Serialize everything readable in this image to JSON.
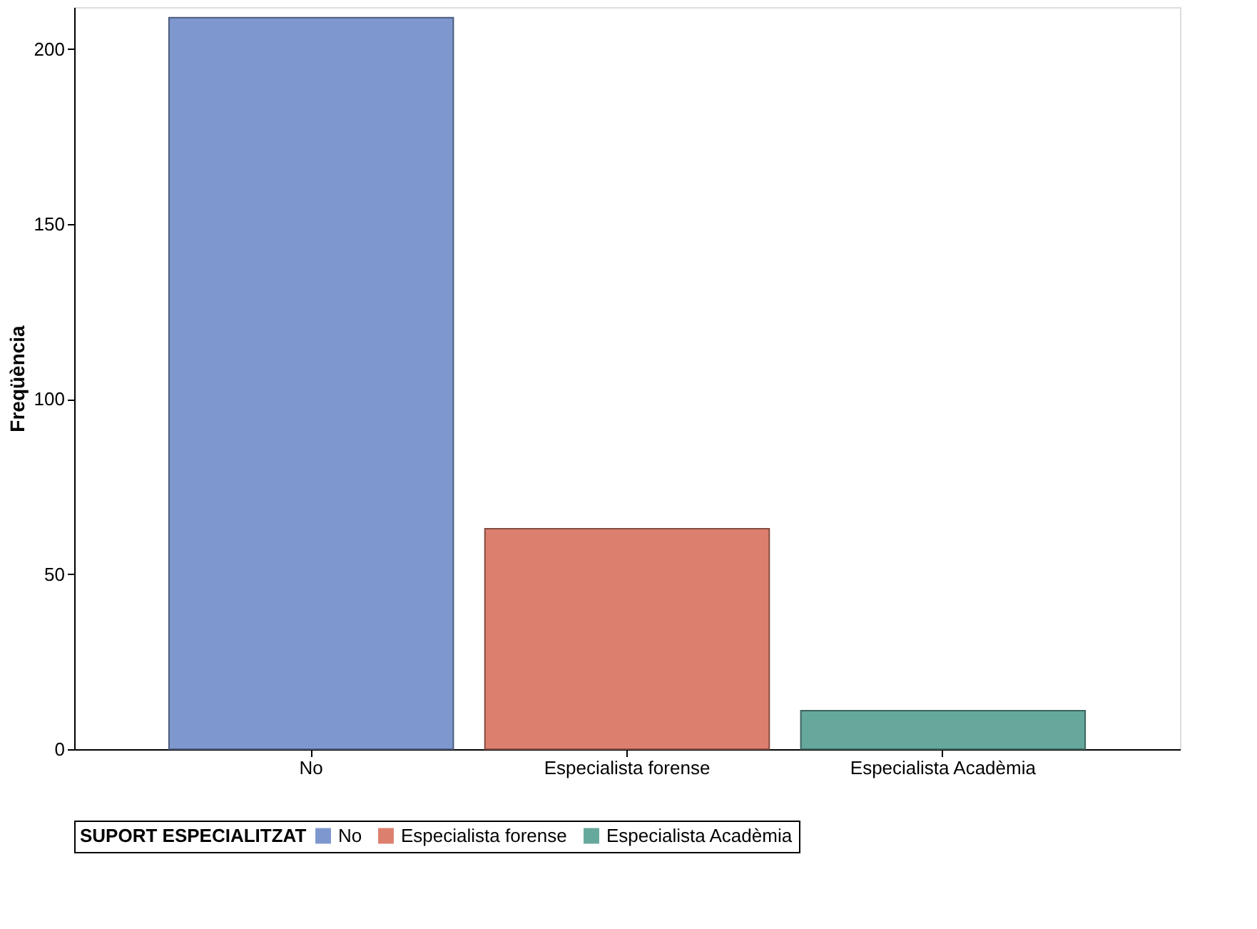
{
  "chart_data": {
    "type": "bar",
    "ylabel": "Freqüència",
    "legend_title": "SUPORT ESPECIALITZAT",
    "categories": [
      "No",
      "Especialista forense",
      "Especialista Acadèmia"
    ],
    "series": [
      {
        "name": "No",
        "color": "#7e98cf",
        "values": [
          209,
          null,
          null
        ]
      },
      {
        "name": "Especialista forense",
        "color": "#dd7f6e",
        "values": [
          null,
          63,
          null
        ]
      },
      {
        "name": "Especialista Acadèmia",
        "color": "#66a89c",
        "values": [
          null,
          null,
          11
        ]
      }
    ],
    "ylim": [
      0,
      212
    ],
    "yticks": [
      0,
      50,
      100,
      150,
      200
    ],
    "grid": false,
    "legend": "bottom"
  }
}
